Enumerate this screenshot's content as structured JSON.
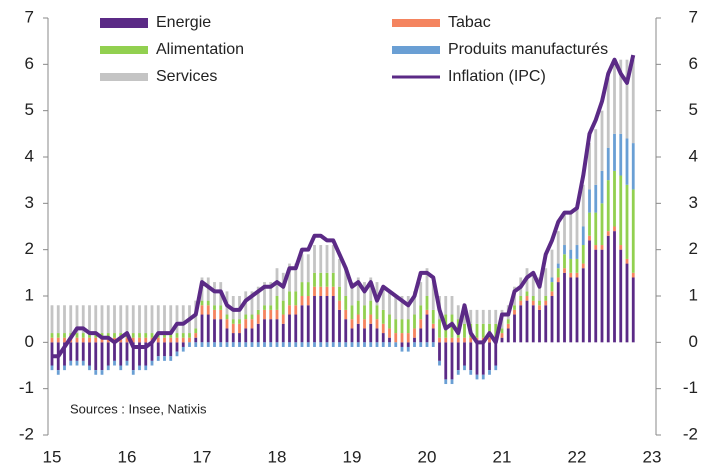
{
  "chart_data": {
    "type": "bar",
    "annotation": "Sources : Insee, Natixis",
    "categories": [
      "15",
      null,
      null,
      null,
      null,
      null,
      null,
      null,
      null,
      null,
      null,
      null,
      "16",
      null,
      null,
      null,
      null,
      null,
      null,
      null,
      null,
      null,
      null,
      null,
      "17",
      null,
      null,
      null,
      null,
      null,
      null,
      null,
      null,
      null,
      null,
      null,
      "18",
      null,
      null,
      null,
      null,
      null,
      null,
      null,
      null,
      null,
      null,
      null,
      "19",
      null,
      null,
      null,
      null,
      null,
      null,
      null,
      null,
      null,
      null,
      null,
      "20",
      null,
      null,
      null,
      null,
      null,
      null,
      null,
      null,
      null,
      null,
      null,
      "21",
      null,
      null,
      null,
      null,
      null,
      null,
      null,
      null,
      null,
      null,
      null,
      "22",
      null,
      null,
      null,
      null,
      null,
      null,
      null,
      null,
      null,
      null,
      null,
      "23"
    ],
    "ylim": [
      -2,
      7
    ],
    "yticks": [
      -2,
      -1,
      0,
      1,
      2,
      3,
      4,
      5,
      6,
      7
    ],
    "y2lim": [
      -2,
      7
    ],
    "y2ticks": [
      -2,
      -1,
      0,
      1,
      2,
      3,
      4,
      5,
      6,
      7
    ],
    "series": [
      {
        "name": "Energie",
        "color": "#5b2a86",
        "type": "bar",
        "values": [
          -0.5,
          -0.6,
          -0.5,
          -0.4,
          -0.4,
          -0.4,
          -0.5,
          -0.6,
          -0.6,
          -0.5,
          -0.4,
          -0.5,
          -0.4,
          -0.6,
          -0.5,
          -0.5,
          -0.4,
          -0.3,
          -0.3,
          -0.3,
          -0.2,
          -0.1,
          0.0,
          0.1,
          0.6,
          0.6,
          0.5,
          0.5,
          0.3,
          0.2,
          0.2,
          0.3,
          0.3,
          0.4,
          0.5,
          0.5,
          0.5,
          0.4,
          0.6,
          0.6,
          0.8,
          0.8,
          1.0,
          1.0,
          1.0,
          1.0,
          0.7,
          0.5,
          0.3,
          0.4,
          0.3,
          0.4,
          0.3,
          0.2,
          0.1,
          0.0,
          -0.1,
          -0.1,
          0.1,
          0.3,
          0.6,
          0.3,
          -0.4,
          -0.8,
          -0.8,
          -0.6,
          -0.5,
          -0.6,
          -0.7,
          -0.7,
          -0.6,
          -0.5,
          0.1,
          0.3,
          0.6,
          0.8,
          0.9,
          0.8,
          0.7,
          0.8,
          1.0,
          1.3,
          1.5,
          1.4,
          1.4,
          1.6,
          2.2,
          2.0,
          2.0,
          2.3,
          2.4,
          2.0,
          1.7,
          1.4,
          null,
          null,
          null
        ]
      },
      {
        "name": "Tabac",
        "color": "#f4845f",
        "type": "bar",
        "values": [
          0.1,
          0.1,
          0.1,
          0.1,
          0.1,
          0.1,
          0.1,
          0.1,
          0.1,
          0.1,
          0.1,
          0.1,
          0.1,
          0.1,
          0.1,
          0.1,
          0.1,
          0.1,
          0.1,
          0.1,
          0.1,
          0.1,
          0.1,
          0.1,
          0.2,
          0.2,
          0.2,
          0.2,
          0.2,
          0.2,
          0.2,
          0.2,
          0.2,
          0.2,
          0.2,
          0.2,
          0.2,
          0.2,
          0.2,
          0.2,
          0.2,
          0.2,
          0.2,
          0.2,
          0.2,
          0.2,
          0.2,
          0.2,
          0.2,
          0.2,
          0.2,
          0.2,
          0.2,
          0.2,
          0.2,
          0.2,
          0.2,
          0.2,
          0.2,
          0.2,
          0.1,
          0.1,
          0.1,
          0.1,
          0.1,
          0.1,
          0.1,
          0.1,
          0.1,
          0.1,
          0.1,
          0.1,
          0.1,
          0.1,
          0.1,
          0.1,
          0.1,
          0.1,
          0.1,
          0.1,
          0.1,
          0.1,
          0.1,
          0.1,
          0.1,
          0.1,
          0.1,
          0.1,
          0.1,
          0.1,
          0.1,
          0.1,
          0.1,
          0.1,
          null,
          null,
          null
        ]
      },
      {
        "name": "Alimentation",
        "color": "#92d050",
        "type": "bar",
        "values": [
          0.1,
          0.1,
          0.1,
          0.1,
          0.1,
          0.1,
          0.1,
          0.1,
          0.1,
          0.1,
          0.1,
          0.1,
          0.1,
          0.1,
          0.1,
          0.1,
          0.1,
          0.1,
          0.1,
          0.1,
          0.1,
          0.1,
          0.1,
          0.1,
          0.1,
          0.1,
          0.1,
          0.1,
          0.1,
          0.1,
          0.1,
          0.1,
          0.1,
          0.1,
          0.1,
          0.1,
          0.3,
          0.3,
          0.3,
          0.3,
          0.3,
          0.3,
          0.3,
          0.3,
          0.3,
          0.3,
          0.3,
          0.3,
          0.3,
          0.3,
          0.3,
          0.3,
          0.3,
          0.3,
          0.3,
          0.3,
          0.3,
          0.3,
          0.3,
          0.3,
          0.3,
          0.3,
          0.4,
          0.5,
          0.5,
          0.4,
          0.3,
          0.3,
          0.3,
          0.3,
          0.3,
          0.3,
          0.1,
          0.1,
          0.1,
          0.1,
          0.1,
          0.1,
          0.1,
          0.1,
          0.2,
          0.2,
          0.3,
          0.3,
          0.3,
          0.4,
          0.5,
          0.7,
          0.9,
          1.1,
          1.2,
          1.5,
          1.6,
          1.8,
          null,
          null,
          null
        ]
      },
      {
        "name": "Produits manufacturés",
        "color": "#6a9fd4",
        "type": "bar",
        "values": [
          -0.1,
          -0.1,
          -0.1,
          -0.1,
          -0.1,
          -0.1,
          -0.1,
          -0.1,
          -0.1,
          -0.1,
          -0.1,
          -0.1,
          -0.1,
          -0.1,
          -0.1,
          -0.1,
          -0.1,
          -0.1,
          -0.1,
          -0.1,
          -0.1,
          -0.1,
          -0.1,
          -0.1,
          -0.1,
          -0.1,
          -0.1,
          -0.1,
          -0.1,
          -0.1,
          -0.1,
          -0.1,
          -0.1,
          -0.1,
          -0.1,
          -0.1,
          -0.1,
          -0.1,
          -0.1,
          -0.1,
          -0.1,
          -0.1,
          -0.1,
          -0.1,
          -0.1,
          -0.1,
          -0.1,
          -0.1,
          -0.1,
          -0.1,
          -0.1,
          -0.1,
          -0.1,
          -0.1,
          -0.1,
          -0.1,
          -0.1,
          -0.1,
          -0.1,
          -0.1,
          -0.1,
          -0.1,
          -0.1,
          -0.1,
          -0.1,
          -0.1,
          -0.1,
          -0.1,
          -0.1,
          -0.1,
          -0.1,
          -0.1,
          0.0,
          0.0,
          0.0,
          0.0,
          0.0,
          0.0,
          0.0,
          0.0,
          0.1,
          0.1,
          0.2,
          0.2,
          0.3,
          0.4,
          0.5,
          0.6,
          0.7,
          0.7,
          0.8,
          0.9,
          1.0,
          1.0,
          null,
          null,
          null
        ]
      },
      {
        "name": "Services",
        "color": "#c4c4c4",
        "type": "bar",
        "values": [
          0.6,
          0.6,
          0.6,
          0.6,
          0.6,
          0.6,
          0.6,
          0.6,
          0.6,
          0.6,
          0.6,
          0.6,
          0.6,
          0.6,
          0.6,
          0.6,
          0.6,
          0.6,
          0.6,
          0.6,
          0.6,
          0.6,
          0.6,
          0.6,
          0.5,
          0.5,
          0.5,
          0.5,
          0.5,
          0.5,
          0.5,
          0.5,
          0.5,
          0.5,
          0.5,
          0.5,
          0.6,
          0.6,
          0.6,
          0.6,
          0.6,
          0.6,
          0.6,
          0.6,
          0.6,
          0.6,
          0.6,
          0.6,
          0.5,
          0.5,
          0.5,
          0.5,
          0.5,
          0.5,
          0.5,
          0.5,
          0.5,
          0.5,
          0.5,
          0.5,
          0.6,
          0.6,
          0.5,
          0.4,
          0.4,
          0.3,
          0.4,
          0.3,
          0.3,
          0.3,
          0.3,
          0.3,
          0.4,
          0.3,
          0.4,
          0.4,
          0.5,
          0.5,
          0.5,
          0.6,
          0.6,
          0.7,
          0.7,
          0.8,
          0.8,
          0.9,
          1.0,
          1.2,
          1.3,
          1.5,
          1.6,
          1.6,
          1.7,
          1.8,
          null,
          null,
          null
        ]
      },
      {
        "name": "Inflation (IPC)",
        "color": "#5b2a86",
        "type": "line",
        "values": [
          -0.3,
          -0.3,
          -0.1,
          0.1,
          0.3,
          0.3,
          0.2,
          0.2,
          0.1,
          0.1,
          0.0,
          0.1,
          0.2,
          -0.1,
          -0.1,
          -0.1,
          0.0,
          0.2,
          0.2,
          0.2,
          0.4,
          0.4,
          0.5,
          0.6,
          1.3,
          1.2,
          1.1,
          1.1,
          0.8,
          0.7,
          0.7,
          0.9,
          1.0,
          1.1,
          1.2,
          1.2,
          1.3,
          1.2,
          1.6,
          1.6,
          2.0,
          2.0,
          2.3,
          2.3,
          2.2,
          2.2,
          1.9,
          1.6,
          1.2,
          1.3,
          1.1,
          1.3,
          0.9,
          1.2,
          1.1,
          1.0,
          0.9,
          0.8,
          1.0,
          1.5,
          1.5,
          1.4,
          0.7,
          0.3,
          0.4,
          0.2,
          0.8,
          0.2,
          0.0,
          0.0,
          0.2,
          0.0,
          0.6,
          0.6,
          1.1,
          1.2,
          1.4,
          1.5,
          1.2,
          1.9,
          2.2,
          2.6,
          2.8,
          2.8,
          2.9,
          3.6,
          4.5,
          4.8,
          5.2,
          5.8,
          6.1,
          5.8,
          5.6,
          6.2,
          null,
          null,
          null
        ]
      }
    ]
  }
}
